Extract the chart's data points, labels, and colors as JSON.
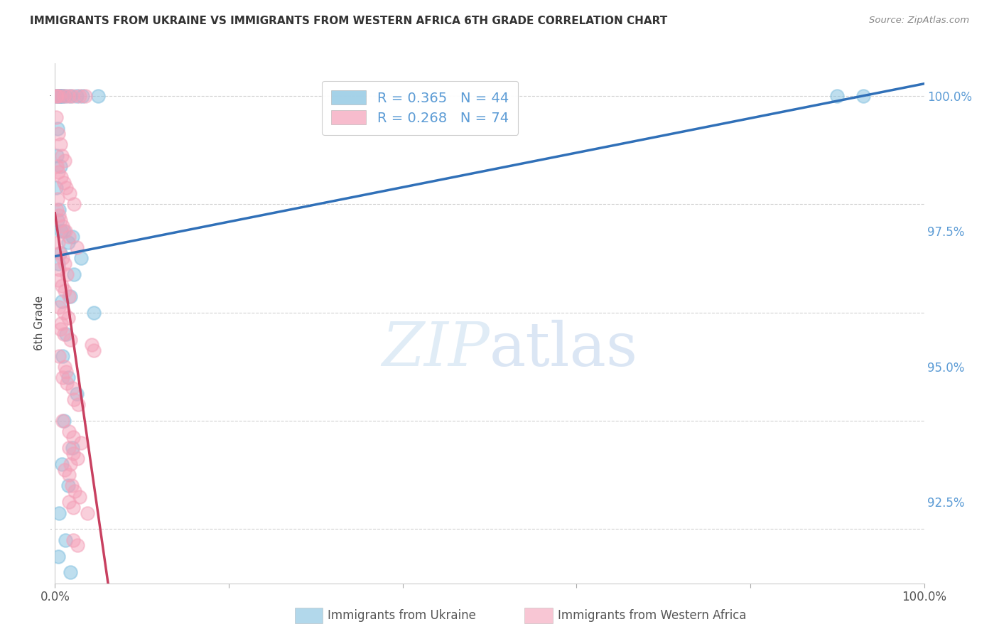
{
  "title": "IMMIGRANTS FROM UKRAINE VS IMMIGRANTS FROM WESTERN AFRICA 6TH GRADE CORRELATION CHART",
  "source": "Source: ZipAtlas.com",
  "ylabel_left": "6th Grade",
  "xlim": [
    0.0,
    100.0
  ],
  "ylim": [
    91.0,
    100.6
  ],
  "ukraine_color": "#7fbfdf",
  "w_africa_color": "#f4a0b8",
  "ukraine_line_color": "#3070b8",
  "w_africa_line_color": "#c84060",
  "ukraine_scatter": [
    [
      0.15,
      100.0
    ],
    [
      0.25,
      100.0
    ],
    [
      0.35,
      100.0
    ],
    [
      0.45,
      100.0
    ],
    [
      0.55,
      100.0
    ],
    [
      0.65,
      100.0
    ],
    [
      0.75,
      100.0
    ],
    [
      0.85,
      100.0
    ],
    [
      1.2,
      100.0
    ],
    [
      1.8,
      100.0
    ],
    [
      2.5,
      100.0
    ],
    [
      3.2,
      100.0
    ],
    [
      5.0,
      100.0
    ],
    [
      0.3,
      99.4
    ],
    [
      0.2,
      98.9
    ],
    [
      0.6,
      98.7
    ],
    [
      0.15,
      98.3
    ],
    [
      0.5,
      97.9
    ],
    [
      0.3,
      97.7
    ],
    [
      1.0,
      97.5
    ],
    [
      0.7,
      97.5
    ],
    [
      2.0,
      97.4
    ],
    [
      1.5,
      97.3
    ],
    [
      0.6,
      97.1
    ],
    [
      3.0,
      97.0
    ],
    [
      0.4,
      96.9
    ],
    [
      2.2,
      96.7
    ],
    [
      1.8,
      96.3
    ],
    [
      0.8,
      96.2
    ],
    [
      4.5,
      96.0
    ],
    [
      1.3,
      95.6
    ],
    [
      0.9,
      95.2
    ],
    [
      1.5,
      94.8
    ],
    [
      2.5,
      94.5
    ],
    [
      1.0,
      94.0
    ],
    [
      2.0,
      93.5
    ],
    [
      0.8,
      93.2
    ],
    [
      1.5,
      92.8
    ],
    [
      0.5,
      92.3
    ],
    [
      1.2,
      91.8
    ],
    [
      0.4,
      91.5
    ],
    [
      1.8,
      91.2
    ],
    [
      90.0,
      100.0
    ],
    [
      93.0,
      100.0
    ]
  ],
  "w_africa_scatter": [
    [
      0.1,
      100.0
    ],
    [
      0.2,
      100.0
    ],
    [
      0.5,
      100.0
    ],
    [
      1.0,
      100.0
    ],
    [
      1.5,
      100.0
    ],
    [
      2.0,
      100.0
    ],
    [
      2.8,
      100.0
    ],
    [
      3.5,
      100.0
    ],
    [
      0.15,
      99.6
    ],
    [
      0.35,
      99.3
    ],
    [
      0.6,
      99.1
    ],
    [
      0.8,
      98.9
    ],
    [
      1.1,
      98.8
    ],
    [
      0.2,
      98.7
    ],
    [
      0.4,
      98.6
    ],
    [
      0.7,
      98.5
    ],
    [
      1.0,
      98.4
    ],
    [
      1.3,
      98.3
    ],
    [
      1.7,
      98.2
    ],
    [
      0.3,
      98.1
    ],
    [
      2.2,
      98.0
    ],
    [
      0.25,
      97.9
    ],
    [
      0.45,
      97.8
    ],
    [
      0.6,
      97.7
    ],
    [
      0.9,
      97.6
    ],
    [
      1.2,
      97.5
    ],
    [
      1.6,
      97.4
    ],
    [
      0.35,
      97.3
    ],
    [
      0.55,
      97.1
    ],
    [
      0.85,
      97.0
    ],
    [
      1.1,
      96.9
    ],
    [
      1.4,
      96.7
    ],
    [
      0.4,
      96.6
    ],
    [
      0.75,
      96.5
    ],
    [
      1.1,
      96.4
    ],
    [
      1.6,
      96.3
    ],
    [
      0.5,
      96.1
    ],
    [
      1.0,
      96.0
    ],
    [
      1.5,
      95.9
    ],
    [
      0.6,
      95.7
    ],
    [
      1.0,
      95.6
    ],
    [
      1.8,
      95.5
    ],
    [
      4.2,
      95.4
    ],
    [
      0.5,
      95.2
    ],
    [
      1.1,
      95.0
    ],
    [
      0.9,
      94.8
    ],
    [
      1.4,
      94.7
    ],
    [
      2.0,
      94.6
    ],
    [
      2.2,
      94.4
    ],
    [
      2.7,
      94.3
    ],
    [
      0.9,
      94.0
    ],
    [
      1.6,
      93.8
    ],
    [
      2.1,
      93.7
    ],
    [
      1.6,
      93.5
    ],
    [
      2.1,
      93.4
    ],
    [
      2.6,
      93.3
    ],
    [
      1.1,
      93.1
    ],
    [
      1.6,
      93.0
    ],
    [
      1.9,
      92.8
    ],
    [
      2.3,
      92.7
    ],
    [
      1.6,
      92.5
    ],
    [
      2.1,
      92.4
    ],
    [
      3.7,
      92.3
    ],
    [
      2.1,
      91.8
    ],
    [
      2.6,
      91.7
    ],
    [
      4.5,
      95.3
    ],
    [
      0.45,
      96.8
    ],
    [
      2.5,
      97.2
    ],
    [
      0.7,
      95.8
    ],
    [
      1.3,
      94.9
    ],
    [
      3.0,
      93.6
    ],
    [
      2.8,
      92.6
    ],
    [
      1.8,
      93.2
    ]
  ]
}
